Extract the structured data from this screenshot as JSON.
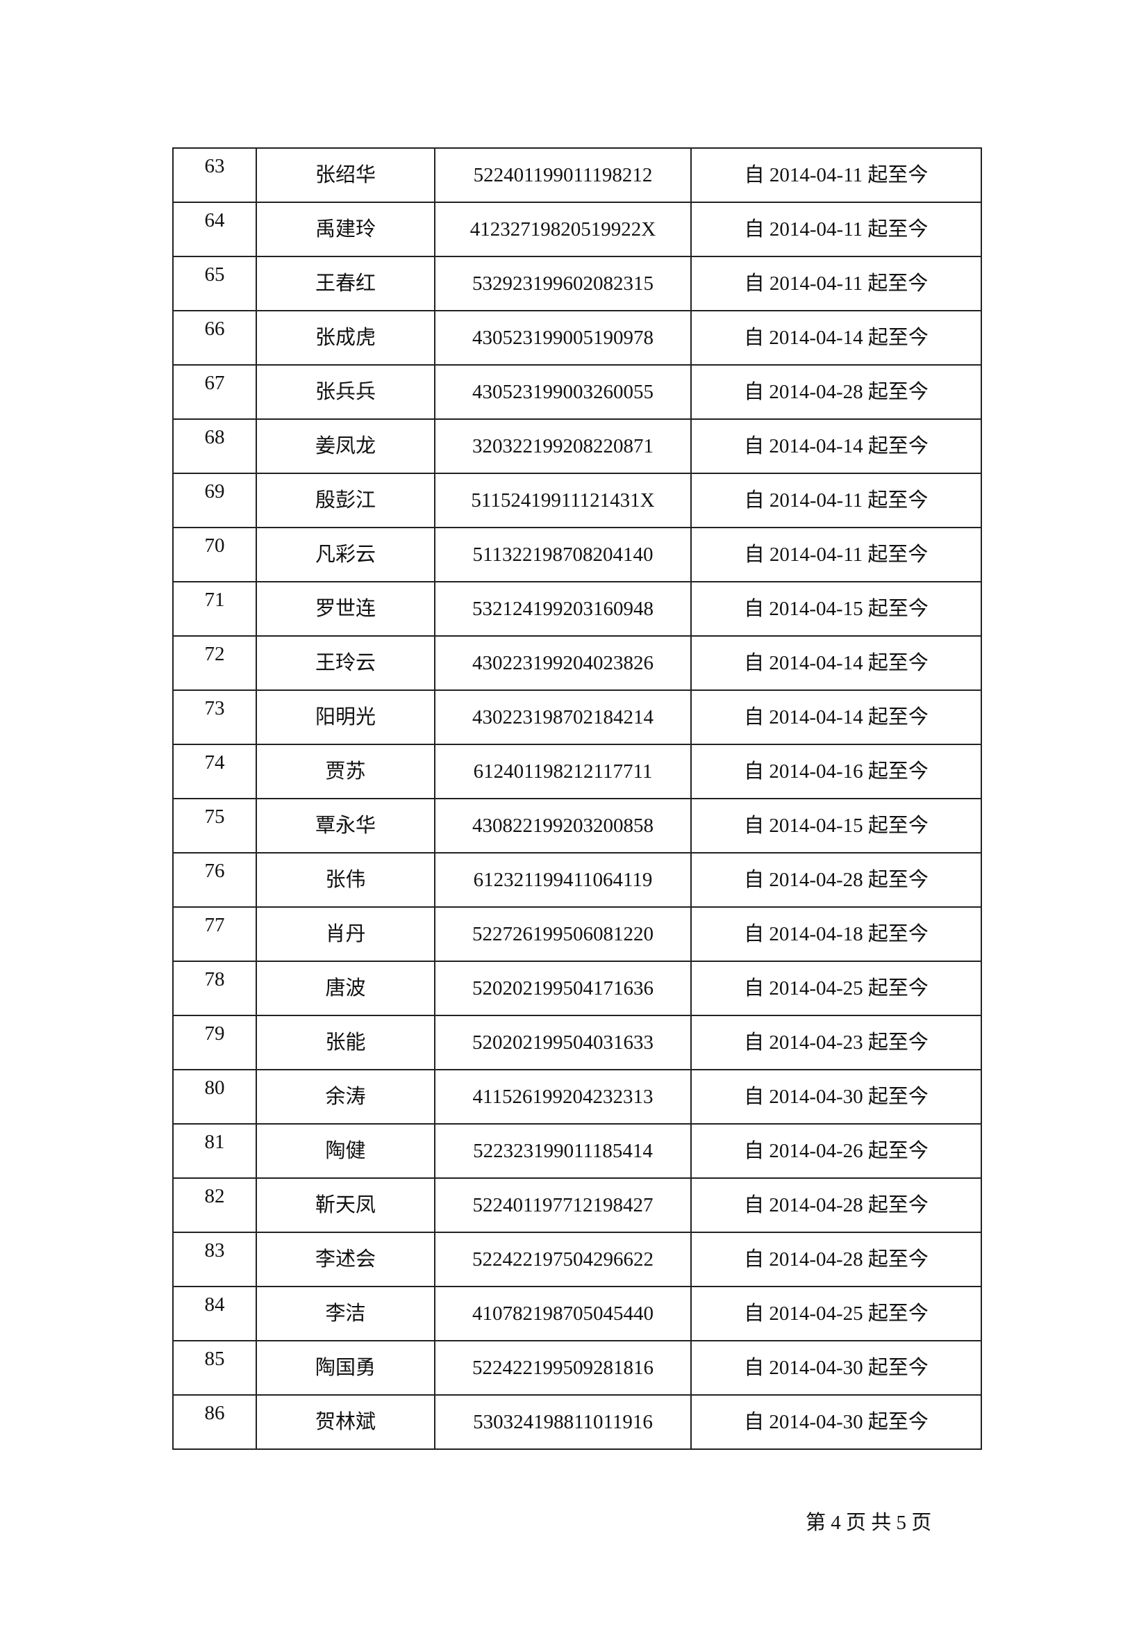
{
  "rows": [
    {
      "no": "63",
      "name": "张绍华",
      "id": "522401199011198212",
      "period": "自 2014-04-11 起至今"
    },
    {
      "no": "64",
      "name": "禹建玲",
      "id": "41232719820519922X",
      "period": "自 2014-04-11 起至今"
    },
    {
      "no": "65",
      "name": "王春红",
      "id": "532923199602082315",
      "period": "自 2014-04-11 起至今"
    },
    {
      "no": "66",
      "name": "张成虎",
      "id": "430523199005190978",
      "period": "自 2014-04-14 起至今"
    },
    {
      "no": "67",
      "name": "张兵兵",
      "id": "430523199003260055",
      "period": "自 2014-04-28 起至今"
    },
    {
      "no": "68",
      "name": "姜凤龙",
      "id": "320322199208220871",
      "period": "自 2014-04-14 起至今"
    },
    {
      "no": "69",
      "name": "殷彭江",
      "id": "51152419911121431X",
      "period": "自 2014-04-11 起至今"
    },
    {
      "no": "70",
      "name": "凡彩云",
      "id": "511322198708204140",
      "period": "自 2014-04-11 起至今"
    },
    {
      "no": "71",
      "name": "罗世连",
      "id": "532124199203160948",
      "period": "自 2014-04-15 起至今"
    },
    {
      "no": "72",
      "name": "王玲云",
      "id": "430223199204023826",
      "period": "自 2014-04-14 起至今"
    },
    {
      "no": "73",
      "name": "阳明光",
      "id": "430223198702184214",
      "period": "自 2014-04-14 起至今"
    },
    {
      "no": "74",
      "name": "贾苏",
      "id": "612401198212117711",
      "period": "自 2014-04-16 起至今"
    },
    {
      "no": "75",
      "name": "覃永华",
      "id": "430822199203200858",
      "period": "自 2014-04-15 起至今"
    },
    {
      "no": "76",
      "name": "张伟",
      "id": "612321199411064119",
      "period": "自 2014-04-28 起至今"
    },
    {
      "no": "77",
      "name": "肖丹",
      "id": "522726199506081220",
      "period": "自 2014-04-18 起至今"
    },
    {
      "no": "78",
      "name": "唐波",
      "id": "520202199504171636",
      "period": "自 2014-04-25 起至今"
    },
    {
      "no": "79",
      "name": "张能",
      "id": "520202199504031633",
      "period": "自 2014-04-23 起至今"
    },
    {
      "no": "80",
      "name": "余涛",
      "id": "411526199204232313",
      "period": "自 2014-04-30 起至今"
    },
    {
      "no": "81",
      "name": "陶健",
      "id": "522323199011185414",
      "period": "自 2014-04-26 起至今"
    },
    {
      "no": "82",
      "name": "靳天凤",
      "id": "522401197712198427",
      "period": "自 2014-04-28 起至今"
    },
    {
      "no": "83",
      "name": "李述会",
      "id": "522422197504296622",
      "period": "自 2014-04-28 起至今"
    },
    {
      "no": "84",
      "name": "李洁",
      "id": "410782198705045440",
      "period": "自 2014-04-25 起至今"
    },
    {
      "no": "85",
      "name": "陶国勇",
      "id": "522422199509281816",
      "period": "自 2014-04-30 起至今"
    },
    {
      "no": "86",
      "name": "贺林斌",
      "id": "530324198811011916",
      "period": "自 2014-04-30 起至今"
    }
  ],
  "footer": {
    "page_label": "第 4 页  共 5 页"
  }
}
